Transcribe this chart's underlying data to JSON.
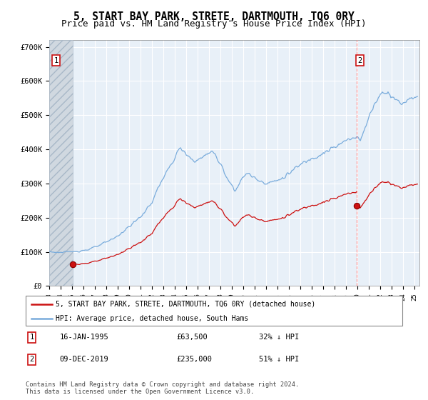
{
  "title": "5, START BAY PARK, STRETE, DARTMOUTH, TQ6 0RY",
  "subtitle": "Price paid vs. HM Land Registry's House Price Index (HPI)",
  "title_fontsize": 10.5,
  "subtitle_fontsize": 9,
  "hpi_color": "#7aacdc",
  "price_color": "#cc1111",
  "legend_line1": "5, START BAY PARK, STRETE, DARTMOUTH, TQ6 0RY (detached house)",
  "legend_line2": "HPI: Average price, detached house, South Hams",
  "note1_date": "16-JAN-1995",
  "note1_price": "£63,500",
  "note1_pct": "32% ↓ HPI",
  "note2_date": "09-DEC-2019",
  "note2_price": "£235,000",
  "note2_pct": "51% ↓ HPI",
  "copyright": "Contains HM Land Registry data © Crown copyright and database right 2024.\nThis data is licensed under the Open Government Licence v3.0.",
  "xlim_start": 1993.0,
  "xlim_end": 2025.42,
  "ylim_min": 0,
  "ylim_max": 720000,
  "yticks": [
    0,
    100000,
    200000,
    300000,
    400000,
    500000,
    600000,
    700000
  ],
  "ytick_labels": [
    "£0",
    "£100K",
    "£200K",
    "£300K",
    "£400K",
    "£500K",
    "£600K",
    "£700K"
  ],
  "sale1_x": 1995.04,
  "sale1_y": 63500,
  "sale2_x": 2019.92,
  "sale2_y": 235000,
  "hatch_end": 1995.04,
  "plot_bg_color": "#e8f0f8",
  "grid_color": "#ffffff",
  "hatch_color": "#c0c8d0"
}
